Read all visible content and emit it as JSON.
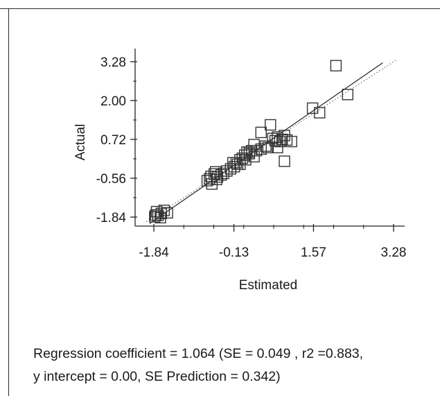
{
  "chart_data": {
    "type": "scatter",
    "xlabel": "Estimated",
    "ylabel": "Actual",
    "xticks": [
      "-1.84",
      "-0.13",
      "1.57",
      "3.28"
    ],
    "yticks": [
      "3.28",
      "2.00",
      "0.72",
      "-0.56",
      "-1.84"
    ],
    "xlim": [
      -1.84,
      3.28
    ],
    "ylim": [
      -1.84,
      3.28
    ],
    "grid": false,
    "marker": "open-square",
    "colors": {
      "points": "#333333",
      "axes": "#222222",
      "fit_line": "#222222",
      "reference_line": "#666666"
    },
    "fit_line": {
      "slope": 1.064,
      "intercept": 0.0
    },
    "reference_line": {
      "slope": 1.0,
      "intercept": 0.0,
      "style": "dotted"
    },
    "points": [
      {
        "x": -1.82,
        "y": -1.83
      },
      {
        "x": -1.75,
        "y": -1.78
      },
      {
        "x": -1.68,
        "y": -1.72
      },
      {
        "x": -1.78,
        "y": -1.66
      },
      {
        "x": -1.62,
        "y": -1.62
      },
      {
        "x": -1.55,
        "y": -1.7
      },
      {
        "x": -1.7,
        "y": -1.86
      },
      {
        "x": -1.8,
        "y": -1.77
      },
      {
        "x": -0.7,
        "y": -0.64
      },
      {
        "x": -0.62,
        "y": -0.5
      },
      {
        "x": -0.55,
        "y": -0.42
      },
      {
        "x": -0.5,
        "y": -0.6
      },
      {
        "x": -0.6,
        "y": -0.75
      },
      {
        "x": -0.48,
        "y": -0.52
      },
      {
        "x": -0.4,
        "y": -0.45
      },
      {
        "x": -0.35,
        "y": -0.4
      },
      {
        "x": -0.28,
        "y": -0.32
      },
      {
        "x": -0.2,
        "y": -0.25
      },
      {
        "x": -0.12,
        "y": -0.18
      },
      {
        "x": -0.05,
        "y": -0.1
      },
      {
        "x": 0.0,
        "y": 0.05
      },
      {
        "x": -0.08,
        "y": -0.05
      },
      {
        "x": 0.05,
        "y": 0.1
      },
      {
        "x": 0.1,
        "y": 0.2
      },
      {
        "x": 0.15,
        "y": 0.3
      },
      {
        "x": 0.2,
        "y": 0.25
      },
      {
        "x": 0.25,
        "y": 0.35
      },
      {
        "x": 0.3,
        "y": 0.15
      },
      {
        "x": 0.35,
        "y": 0.35
      },
      {
        "x": 0.45,
        "y": 0.4
      },
      {
        "x": 0.55,
        "y": 0.5
      },
      {
        "x": 0.6,
        "y": 0.45
      },
      {
        "x": 0.7,
        "y": 0.75
      },
      {
        "x": 0.75,
        "y": 0.68
      },
      {
        "x": 0.8,
        "y": 0.8
      },
      {
        "x": 0.85,
        "y": 0.65
      },
      {
        "x": 0.9,
        "y": 0.72
      },
      {
        "x": 0.95,
        "y": 0.85
      },
      {
        "x": 1.0,
        "y": 0.7
      },
      {
        "x": 1.1,
        "y": 0.65
      },
      {
        "x": 0.8,
        "y": 0.45
      },
      {
        "x": 0.65,
        "y": 1.2
      },
      {
        "x": 0.45,
        "y": 0.95
      },
      {
        "x": 0.3,
        "y": 0.55
      },
      {
        "x": 0.2,
        "y": 0.3
      },
      {
        "x": 0.95,
        "y": 0.0
      },
      {
        "x": 1.55,
        "y": 1.75
      },
      {
        "x": 1.7,
        "y": 1.6
      },
      {
        "x": 2.05,
        "y": 3.15
      },
      {
        "x": 2.3,
        "y": 2.2
      },
      {
        "x": -0.65,
        "y": -0.58
      },
      {
        "x": -0.52,
        "y": -0.35
      },
      {
        "x": -0.15,
        "y": -0.05
      },
      {
        "x": 0.0,
        "y": -0.1
      },
      {
        "x": 0.12,
        "y": 0.05
      }
    ]
  },
  "caption": {
    "line1": "Regression coefficient = 1.064 (SE = 0.049 , r2 =0.883,",
    "line2": "y intercept = 0.00, SE Prediction = 0.342)"
  }
}
